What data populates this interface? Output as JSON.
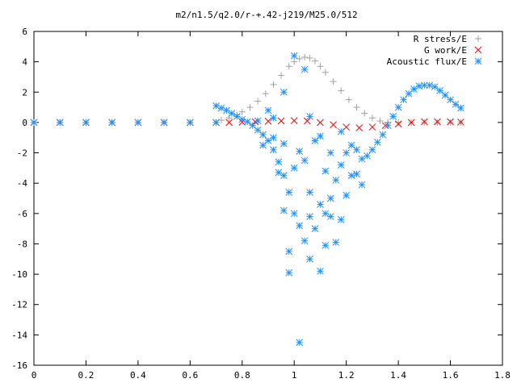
{
  "chart_data": {
    "type": "scatter",
    "title": "m2/n1.5/q2.0/r-+.42-j219/M25.0/512",
    "xlabel": "",
    "ylabel": "",
    "xlim": [
      0,
      1.8
    ],
    "ylim": [
      -16,
      6
    ],
    "x_ticks": [
      "0",
      "0.2",
      "0.4",
      "0.6",
      "0.8",
      "1",
      "1.2",
      "1.4",
      "1.6",
      "1.8"
    ],
    "y_ticks": [
      "6",
      "4",
      "2",
      "0",
      "-2",
      "-4",
      "-6",
      "-8",
      "-10",
      "-12",
      "-14",
      "-16"
    ],
    "grid": false,
    "legend_position": "top-right",
    "colors": {
      "r_stress": "#a0a0a0",
      "g_work": "#ff0000",
      "acoustic": "#1e90ff",
      "frame": "#000000"
    },
    "series": [
      {
        "name": "R stress/E",
        "marker": "plus",
        "color": "#a0a0a0",
        "points": [
          [
            0.0,
            0.0
          ],
          [
            0.1,
            0.0
          ],
          [
            0.2,
            0.0
          ],
          [
            0.3,
            0.0
          ],
          [
            0.4,
            0.0
          ],
          [
            0.5,
            0.0
          ],
          [
            0.6,
            0.0
          ],
          [
            0.7,
            0.0
          ],
          [
            0.72,
            0.15
          ],
          [
            0.75,
            0.3
          ],
          [
            0.78,
            0.5
          ],
          [
            0.8,
            0.7
          ],
          [
            0.83,
            1.0
          ],
          [
            0.86,
            1.4
          ],
          [
            0.89,
            1.9
          ],
          [
            0.92,
            2.5
          ],
          [
            0.95,
            3.1
          ],
          [
            0.98,
            3.7
          ],
          [
            1.0,
            4.0
          ],
          [
            1.02,
            4.2
          ],
          [
            1.04,
            4.3
          ],
          [
            1.06,
            4.25
          ],
          [
            1.08,
            4.05
          ],
          [
            1.1,
            3.7
          ],
          [
            1.12,
            3.3
          ],
          [
            1.15,
            2.7
          ],
          [
            1.18,
            2.1
          ],
          [
            1.21,
            1.5
          ],
          [
            1.24,
            1.0
          ],
          [
            1.27,
            0.6
          ],
          [
            1.3,
            0.3
          ],
          [
            1.33,
            0.1
          ],
          [
            1.36,
            0.02
          ],
          [
            1.4,
            0.0
          ],
          [
            1.45,
            0.0
          ],
          [
            1.5,
            0.0
          ],
          [
            1.55,
            0.0
          ],
          [
            1.6,
            0.0
          ],
          [
            1.64,
            0.0
          ]
        ]
      },
      {
        "name": "G work/E",
        "marker": "cross",
        "color": "#ff0000",
        "points": [
          [
            0.0,
            0.0
          ],
          [
            0.1,
            0.0
          ],
          [
            0.2,
            0.0
          ],
          [
            0.3,
            0.0
          ],
          [
            0.4,
            0.0
          ],
          [
            0.5,
            0.0
          ],
          [
            0.6,
            0.0
          ],
          [
            0.7,
            0.0
          ],
          [
            0.75,
            0.0
          ],
          [
            0.8,
            0.02
          ],
          [
            0.85,
            0.05
          ],
          [
            0.9,
            0.08
          ],
          [
            0.95,
            0.1
          ],
          [
            1.0,
            0.12
          ],
          [
            1.05,
            0.1
          ],
          [
            1.1,
            0.0
          ],
          [
            1.15,
            -0.15
          ],
          [
            1.2,
            -0.3
          ],
          [
            1.25,
            -0.35
          ],
          [
            1.3,
            -0.3
          ],
          [
            1.35,
            -0.2
          ],
          [
            1.4,
            -0.1
          ],
          [
            1.45,
            0.0
          ],
          [
            1.5,
            0.05
          ],
          [
            1.55,
            0.05
          ],
          [
            1.6,
            0.05
          ],
          [
            1.64,
            0.02
          ]
        ]
      },
      {
        "name": "Acoustic flux/E",
        "marker": "star",
        "color": "#1e90ff",
        "points": [
          [
            0.0,
            0.0
          ],
          [
            0.1,
            0.0
          ],
          [
            0.2,
            0.0
          ],
          [
            0.3,
            0.0
          ],
          [
            0.4,
            0.0
          ],
          [
            0.5,
            0.0
          ],
          [
            0.6,
            0.0
          ],
          [
            0.7,
            0.0
          ],
          [
            0.7,
            1.1
          ],
          [
            0.72,
            0.95
          ],
          [
            0.74,
            0.8
          ],
          [
            0.76,
            0.6
          ],
          [
            0.78,
            0.4
          ],
          [
            0.8,
            0.2
          ],
          [
            0.82,
            0.05
          ],
          [
            0.84,
            -0.2
          ],
          [
            0.86,
            -0.5
          ],
          [
            0.88,
            -0.8
          ],
          [
            0.9,
            -1.2
          ],
          [
            0.92,
            -1.8
          ],
          [
            0.94,
            -2.6
          ],
          [
            0.96,
            -3.5
          ],
          [
            0.98,
            -4.6
          ],
          [
            1.0,
            -6.0
          ],
          [
            1.02,
            -14.5
          ],
          [
            1.0,
            4.4
          ],
          [
            1.04,
            3.5
          ],
          [
            0.96,
            2.0
          ],
          [
            0.92,
            -1.0
          ],
          [
            0.98,
            -8.5
          ],
          [
            1.04,
            -7.8
          ],
          [
            1.06,
            -9.0
          ],
          [
            1.1,
            -9.8
          ],
          [
            1.08,
            -7.0
          ],
          [
            1.12,
            -6.0
          ],
          [
            1.14,
            -5.0
          ],
          [
            1.16,
            -3.8
          ],
          [
            1.18,
            -2.8
          ],
          [
            1.2,
            -2.0
          ],
          [
            1.22,
            -1.5
          ],
          [
            1.24,
            -1.8
          ],
          [
            1.26,
            -2.4
          ],
          [
            1.28,
            -2.2
          ],
          [
            1.3,
            -1.8
          ],
          [
            1.32,
            -1.3
          ],
          [
            1.34,
            -0.8
          ],
          [
            1.36,
            -0.2
          ],
          [
            1.38,
            0.4
          ],
          [
            1.4,
            1.0
          ],
          [
            1.42,
            1.5
          ],
          [
            1.44,
            1.9
          ],
          [
            1.46,
            2.2
          ],
          [
            1.48,
            2.4
          ],
          [
            1.5,
            2.45
          ],
          [
            1.52,
            2.45
          ],
          [
            1.54,
            2.35
          ],
          [
            1.56,
            2.1
          ],
          [
            1.58,
            1.8
          ],
          [
            1.6,
            1.5
          ],
          [
            1.62,
            1.2
          ],
          [
            1.64,
            0.95
          ],
          [
            0.9,
            0.8
          ],
          [
            0.94,
            -3.3
          ],
          [
            0.96,
            -5.8
          ],
          [
            1.0,
            -3.0
          ],
          [
            1.06,
            -4.6
          ],
          [
            1.1,
            -5.4
          ],
          [
            1.12,
            -3.2
          ],
          [
            1.14,
            -6.2
          ],
          [
            1.16,
            -7.9
          ],
          [
            1.18,
            -6.4
          ],
          [
            1.2,
            -4.8
          ],
          [
            1.22,
            -3.5
          ],
          [
            1.08,
            -1.2
          ],
          [
            1.02,
            -1.9
          ],
          [
            0.88,
            -1.5
          ],
          [
            0.86,
            0.1
          ],
          [
            0.92,
            0.3
          ],
          [
            0.96,
            -1.4
          ],
          [
            1.04,
            -2.5
          ],
          [
            1.06,
            0.4
          ],
          [
            1.1,
            -0.9
          ],
          [
            1.14,
            -2.0
          ],
          [
            1.18,
            -0.6
          ],
          [
            1.24,
            -3.4
          ],
          [
            1.26,
            -4.1
          ],
          [
            0.98,
            -9.9
          ],
          [
            1.02,
            -6.8
          ],
          [
            1.06,
            -6.2
          ],
          [
            1.12,
            -8.1
          ]
        ]
      }
    ]
  }
}
